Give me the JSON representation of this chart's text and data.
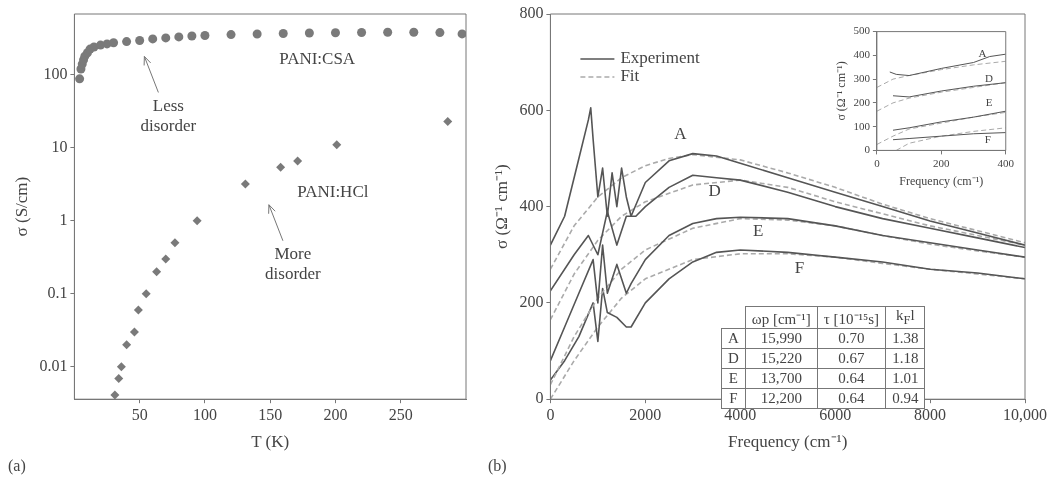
{
  "chart_data": [
    {
      "type": "scatter",
      "title": "(a)",
      "xlabel": "T (K)",
      "ylabel": "σ (S/cm)",
      "log": "y",
      "grid": false,
      "legend": false,
      "xlim": [
        0,
        300
      ],
      "xticks": [
        50,
        100,
        150,
        200,
        250
      ],
      "ylim": [
        0.0036,
        680
      ],
      "yticks": [
        0.01,
        0.1,
        1,
        10,
        100
      ],
      "series": [
        {
          "color": "#7a7a7a",
          "marker": "circle",
          "x": [
            4,
            5,
            6,
            7,
            8,
            10,
            12,
            15,
            20,
            25,
            30,
            40,
            50,
            60,
            70,
            80,
            90,
            100,
            120,
            140,
            160,
            180,
            200,
            220,
            240,
            260,
            280,
            297
          ],
          "values": [
            88,
            120,
            140,
            160,
            180,
            200,
            225,
            240,
            255,
            265,
            275,
            285,
            295,
            310,
            320,
            330,
            340,
            345,
            355,
            362,
            368,
            373,
            377,
            380,
            382,
            383,
            378,
            363
          ]
        },
        {
          "color": "#7a7a7a",
          "marker": "diamond",
          "x": [
            31,
            34,
            36,
            40,
            46,
            49,
            55,
            63,
            70,
            77,
            94,
            131,
            158,
            171,
            201,
            286
          ],
          "values": [
            0.0041,
            0.0069,
            0.01,
            0.02,
            0.03,
            0.06,
            0.1,
            0.2,
            0.3,
            0.5,
            1,
            3.2,
            5.4,
            6.6,
            11,
            23
          ]
        }
      ],
      "annotations": [
        "PANI:CSA",
        "PANI:HCl",
        "Less\ndisorder",
        "More\ndisorder"
      ]
    },
    {
      "type": "line",
      "title": "(b)",
      "xlabel": "Frequency (cm⁻¹)",
      "ylabel": "σ (Ω⁻¹ cm⁻¹)",
      "grid": false,
      "legend": "top left",
      "xlim": [
        0,
        10000
      ],
      "xticks": [
        0,
        2000,
        4000,
        6000,
        8000,
        {
          "value": 10000,
          "label": "10,000"
        }
      ],
      "ylim": [
        0,
        800
      ],
      "yticks": [
        0,
        200,
        400,
        600,
        800
      ],
      "series": [
        {
          "name": "Experiment",
          "color": "#555555",
          "line_style": "solid",
          "x": [
            0,
            300,
            600,
            800,
            850,
            900,
            1000,
            1100,
            1200,
            1300,
            1400,
            1500,
            1600,
            1700,
            2000,
            2500,
            3000,
            3500,
            4000,
            5000,
            6000,
            7000,
            8000,
            9000,
            10000
          ],
          "values": [
            320,
            380,
            500,
            580,
            605,
            540,
            420,
            480,
            380,
            470,
            400,
            480,
            420,
            380,
            450,
            495,
            510,
            505,
            490,
            460,
            430,
            400,
            370,
            345,
            320
          ]
        },
        {
          "name": "Fit",
          "color": "#aaaaaa",
          "line_style": "dashed",
          "x": [
            0,
            500,
            1000,
            1500,
            2000,
            2500,
            3000,
            4000,
            5000,
            6000,
            7000,
            8000,
            9000,
            10000
          ],
          "values": [
            270,
            360,
            420,
            460,
            485,
            500,
            508,
            497,
            470,
            440,
            405,
            375,
            350,
            325
          ]
        },
        {
          "color": "#555555",
          "line_style": "solid",
          "x": [
            0,
            500,
            800,
            1000,
            1200,
            1400,
            1600,
            1800,
            2000,
            2500,
            3000,
            3500,
            4000,
            5000,
            6000,
            7000,
            8000,
            9000,
            10000
          ],
          "values": [
            225,
            300,
            340,
            300,
            390,
            320,
            380,
            380,
            400,
            440,
            465,
            460,
            455,
            430,
            400,
            375,
            355,
            335,
            315
          ]
        },
        {
          "color": "#aaaaaa",
          "line_style": "dashed",
          "x": [
            0,
            500,
            1000,
            1500,
            2000,
            3000,
            4000,
            5000,
            6000,
            7000,
            8000,
            9000,
            10000
          ],
          "values": [
            165,
            260,
            330,
            380,
            410,
            445,
            455,
            440,
            410,
            385,
            360,
            340,
            320
          ]
        },
        {
          "color": "#555555",
          "line_style": "solid",
          "x": [
            0,
            300,
            600,
            900,
            1000,
            1100,
            1200,
            1400,
            1600,
            1700,
            2000,
            2500,
            3000,
            3500,
            4000,
            5000,
            6000,
            7000,
            8000,
            9000,
            10000
          ],
          "values": [
            80,
            150,
            220,
            290,
            200,
            320,
            220,
            280,
            220,
            240,
            290,
            340,
            365,
            375,
            378,
            375,
            360,
            340,
            325,
            310,
            295
          ]
        },
        {
          "color": "#aaaaaa",
          "line_style": "dashed",
          "x": [
            0,
            500,
            1000,
            1500,
            2000,
            3000,
            4000,
            5000,
            6000,
            7000,
            8000,
            9000,
            10000
          ],
          "values": [
            30,
            130,
            210,
            270,
            310,
            355,
            375,
            372,
            360,
            340,
            322,
            308,
            295
          ]
        },
        {
          "color": "#555555",
          "line_style": "solid",
          "x": [
            0,
            300,
            600,
            900,
            1000,
            1100,
            1200,
            1400,
            1600,
            1700,
            2000,
            2500,
            3000,
            3500,
            4000,
            5000,
            6000,
            7000,
            8000,
            9000,
            10000
          ],
          "values": [
            40,
            80,
            130,
            200,
            120,
            230,
            180,
            170,
            150,
            150,
            200,
            250,
            285,
            305,
            310,
            305,
            295,
            285,
            270,
            262,
            250
          ]
        },
        {
          "color": "#aaaaaa",
          "line_style": "dashed",
          "x": [
            0,
            500,
            1000,
            1500,
            2000,
            3000,
            4000,
            5000,
            6000,
            7000,
            8000,
            9000,
            10000
          ],
          "values": [
            0,
            80,
            150,
            210,
            250,
            290,
            302,
            302,
            295,
            282,
            270,
            260,
            250
          ]
        }
      ],
      "annotations": [
        "A",
        "D",
        "E",
        "F",
        "ωp [cm⁻¹]",
        "τ [10⁻¹⁵s]",
        "k$_{F}$l",
        "A",
        "15,990",
        "0.70",
        "1.38",
        "D",
        "15,220",
        "0.67",
        "1.18",
        "E",
        "13,700",
        "0.64",
        "1.01",
        "F",
        "12,200",
        "0.64",
        "0.94"
      ]
    },
    {
      "type": "line",
      "xlabel": "Frequency (cm⁻¹)",
      "ylabel": "σ (Ω⁻¹ cm⁻¹)",
      "grid": false,
      "xlim": [
        0,
        400
      ],
      "xticks": [
        0,
        200,
        400
      ],
      "ylim": [
        0,
        500
      ],
      "yticks": [
        0,
        100,
        200,
        300,
        400,
        500
      ],
      "series": [
        {
          "color": "#555555",
          "line_style": "solid",
          "x": [
            40,
            60,
            100,
            200,
            300,
            350,
            400
          ],
          "values": [
            330,
            320,
            315,
            345,
            370,
            395,
            405
          ]
        },
        {
          "color": "#aaaaaa",
          "line_style": "dashed",
          "x": [
            0,
            50,
            100,
            200,
            300,
            400
          ],
          "values": [
            265,
            300,
            315,
            340,
            360,
            375
          ]
        },
        {
          "color": "#555555",
          "line_style": "solid",
          "x": [
            50,
            100,
            200,
            300,
            400
          ],
          "values": [
            230,
            225,
            250,
            270,
            285
          ]
        },
        {
          "color": "#aaaaaa",
          "line_style": "dashed",
          "x": [
            0,
            50,
            100,
            200,
            300,
            400
          ],
          "values": [
            165,
            200,
            220,
            245,
            265,
            285
          ]
        },
        {
          "color": "#555555",
          "line_style": "solid",
          "x": [
            50,
            100,
            200,
            300,
            400
          ],
          "values": [
            85,
            95,
            120,
            140,
            165
          ]
        },
        {
          "color": "#aaaaaa",
          "line_style": "dashed",
          "x": [
            0,
            50,
            100,
            200,
            300,
            400
          ],
          "values": [
            25,
            60,
            90,
            115,
            140,
            160
          ]
        },
        {
          "color": "#555555",
          "line_style": "solid",
          "x": [
            50,
            100,
            200,
            300,
            400
          ],
          "values": [
            45,
            50,
            60,
            70,
            75
          ]
        },
        {
          "color": "#aaaaaa",
          "line_style": "dashed",
          "x": [
            60,
            100,
            200,
            300,
            400
          ],
          "values": [
            0,
            30,
            60,
            80,
            95
          ]
        }
      ],
      "annotations": [
        "A",
        "D",
        "E",
        "F"
      ]
    }
  ]
}
